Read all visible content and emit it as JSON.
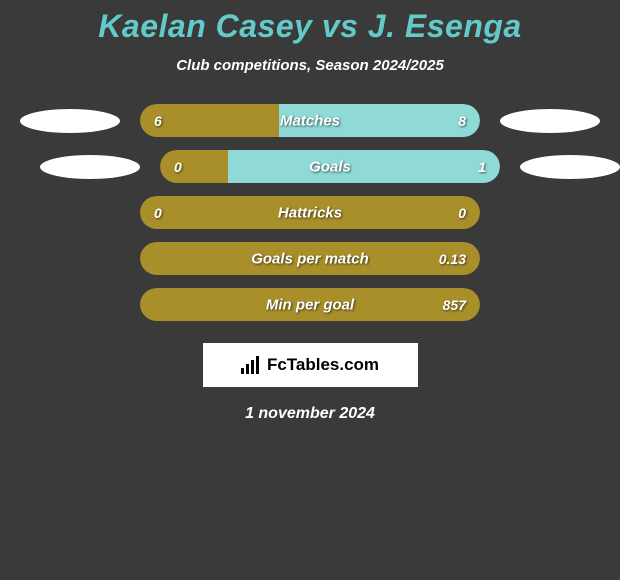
{
  "title": "Kaelan Casey vs J. Esenga",
  "subtitle": "Club competitions, Season 2024/2025",
  "background_color": "#3a3a3a",
  "title_color": "#62cbc9",
  "text_color": "#ffffff",
  "left_color": "#a88f2a",
  "right_color": "#8fd9d7",
  "neutral_color": "#a88f2a",
  "rows": [
    {
      "label": "Matches",
      "left_value": "6",
      "right_value": "8",
      "left_pct": 41,
      "right_pct": 59,
      "show_ellipses": true
    },
    {
      "label": "Goals",
      "left_value": "0",
      "right_value": "1",
      "left_pct": 20,
      "right_pct": 80,
      "show_ellipses": true,
      "ellipse_offset": true
    },
    {
      "label": "Hattricks",
      "left_value": "0",
      "right_value": "0",
      "left_pct": 100,
      "right_pct": 0,
      "show_ellipses": false,
      "neutral": true
    },
    {
      "label": "Goals per match",
      "left_value": "",
      "right_value": "0.13",
      "left_pct": 0,
      "right_pct": 100,
      "show_ellipses": false,
      "neutral": true
    },
    {
      "label": "Min per goal",
      "left_value": "",
      "right_value": "857",
      "left_pct": 0,
      "right_pct": 100,
      "show_ellipses": false,
      "neutral": true
    }
  ],
  "logo_text_fc": "Fc",
  "logo_text_rest": "Tables.com",
  "date": "1 november 2024"
}
